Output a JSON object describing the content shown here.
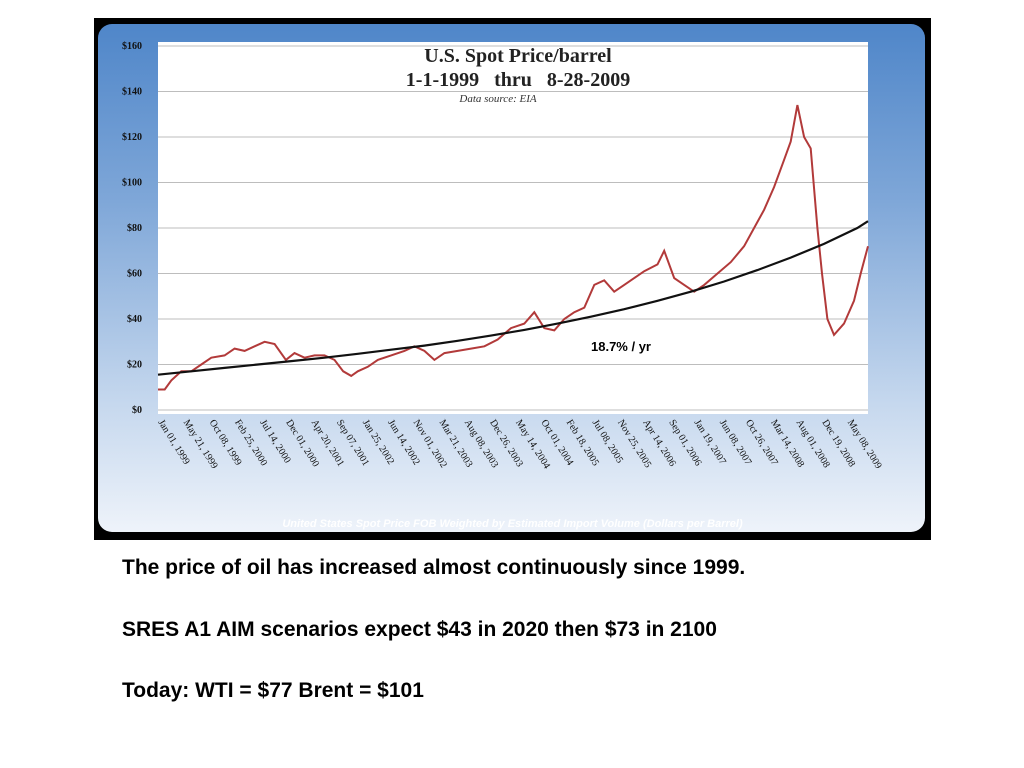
{
  "slide": {
    "lines": [
      "The price of oil has increased almost continuously since 1999.",
      "SRES A1 AIM scenarios expect $43 in 2020 then $73 in 2100",
      "Today: WTI = $77   Brent = $101"
    ]
  },
  "colors": {
    "price_line": "#b23a3a",
    "trend_line": "#111111",
    "grid": "#bdbdbd",
    "frame": "#000000"
  },
  "chart_data": {
    "type": "line",
    "title": "U.S. Spot Price/barrel",
    "subtitle": "1-1-1999   thru   8-28-2009",
    "source": "Data source: EIA",
    "caption": "United States Spot Price FOB Weighted by Estimated Import Volume (Dollars per Barrel)",
    "annotation": "18.7% / yr",
    "xlabel": "",
    "ylabel": "",
    "ylim": [
      0,
      160
    ],
    "xlim": [
      1999.0,
      2009.66
    ],
    "grid": true,
    "y_ticks": [
      "$0",
      "$20",
      "$40",
      "$60",
      "$80",
      "$100",
      "$120",
      "$140",
      "$160"
    ],
    "x_ticks": [
      {
        "label": "Jan 01, 1999",
        "x": 1999.0
      },
      {
        "label": "May 21, 1999",
        "x": 1999.38
      },
      {
        "label": "Oct 08, 1999",
        "x": 1999.77
      },
      {
        "label": "Feb 25, 2000",
        "x": 2000.15
      },
      {
        "label": "Jul 14, 2000",
        "x": 2000.53
      },
      {
        "label": "Dec 01, 2000",
        "x": 2000.92
      },
      {
        "label": "Apr 20, 2001",
        "x": 2001.3
      },
      {
        "label": "Sep 07, 2001",
        "x": 2001.68
      },
      {
        "label": "Jan 25, 2002",
        "x": 2002.07
      },
      {
        "label": "Jun 14, 2002",
        "x": 2002.45
      },
      {
        "label": "Nov 01, 2002",
        "x": 2002.83
      },
      {
        "label": "Mar 21, 2003",
        "x": 2003.22
      },
      {
        "label": "Aug 08, 2003",
        "x": 2003.6
      },
      {
        "label": "Dec 26, 2003",
        "x": 2003.98
      },
      {
        "label": "May 14, 2004",
        "x": 2004.37
      },
      {
        "label": "Oct 01, 2004",
        "x": 2004.75
      },
      {
        "label": "Feb 18, 2005",
        "x": 2005.13
      },
      {
        "label": "Jul 08, 2005",
        "x": 2005.52
      },
      {
        "label": "Nov 25, 2005",
        "x": 2005.9
      },
      {
        "label": "Apr 14, 2006",
        "x": 2006.28
      },
      {
        "label": "Sep 01, 2006",
        "x": 2006.67
      },
      {
        "label": "Jan 19, 2007",
        "x": 2007.05
      },
      {
        "label": "Jun 08, 2007",
        "x": 2007.43
      },
      {
        "label": "Oct 26, 2007",
        "x": 2007.82
      },
      {
        "label": "Mar 14, 2008",
        "x": 2008.2
      },
      {
        "label": "Aug 01, 2008",
        "x": 2008.58
      },
      {
        "label": "Dec 19, 2008",
        "x": 2008.97
      },
      {
        "label": "May 08, 2009",
        "x": 2009.35
      }
    ],
    "series": [
      {
        "role": "price",
        "x": [
          1999.0,
          1999.1,
          1999.2,
          1999.35,
          1999.5,
          1999.65,
          1999.8,
          2000.0,
          2000.15,
          2000.3,
          2000.45,
          2000.6,
          2000.75,
          2000.92,
          2001.05,
          2001.2,
          2001.35,
          2001.5,
          2001.65,
          2001.78,
          2001.9,
          2002.0,
          2002.15,
          2002.3,
          2002.5,
          2002.7,
          2002.85,
          2003.0,
          2003.15,
          2003.3,
          2003.5,
          2003.7,
          2003.9,
          2004.1,
          2004.3,
          2004.5,
          2004.65,
          2004.8,
          2004.95,
          2005.1,
          2005.25,
          2005.4,
          2005.55,
          2005.7,
          2005.85,
          2006.0,
          2006.15,
          2006.3,
          2006.5,
          2006.6,
          2006.75,
          2006.9,
          2007.05,
          2007.2,
          2007.4,
          2007.6,
          2007.8,
          2007.95,
          2008.1,
          2008.25,
          2008.4,
          2008.5,
          2008.6,
          2008.7,
          2008.8,
          2008.9,
          2008.97,
          2009.05,
          2009.15,
          2009.3,
          2009.45,
          2009.55,
          2009.66
        ],
        "values": [
          9,
          9,
          13,
          17,
          17,
          20,
          23,
          24,
          27,
          26,
          28,
          30,
          29,
          22,
          25,
          23,
          24,
          24,
          22,
          17,
          15,
          17,
          19,
          22,
          24,
          26,
          28,
          26,
          22,
          25,
          26,
          27,
          28,
          31,
          36,
          38,
          43,
          36,
          35,
          40,
          43,
          45,
          55,
          57,
          52,
          55,
          58,
          61,
          64,
          70,
          58,
          55,
          52,
          55,
          60,
          65,
          72,
          80,
          88,
          98,
          110,
          118,
          134,
          120,
          115,
          80,
          60,
          40,
          33,
          38,
          48,
          60,
          72
        ]
      },
      {
        "role": "trend",
        "name": "18.7% / yr",
        "x": [
          1999.0,
          1999.5,
          2000.0,
          2000.5,
          2001.0,
          2001.5,
          2002.0,
          2002.5,
          2003.0,
          2003.5,
          2004.0,
          2004.5,
          2005.0,
          2005.5,
          2006.0,
          2006.5,
          2007.0,
          2007.5,
          2008.0,
          2008.5,
          2009.0,
          2009.5,
          2009.66
        ],
        "values": [
          15.5,
          17.0,
          18.5,
          20.0,
          21.5,
          23.0,
          24.7,
          26.5,
          28.3,
          30.4,
          32.7,
          35.2,
          38.0,
          41.0,
          44.3,
          48.0,
          52.0,
          56.5,
          61.5,
          67.0,
          73.0,
          80.0,
          83.0
        ]
      }
    ]
  }
}
